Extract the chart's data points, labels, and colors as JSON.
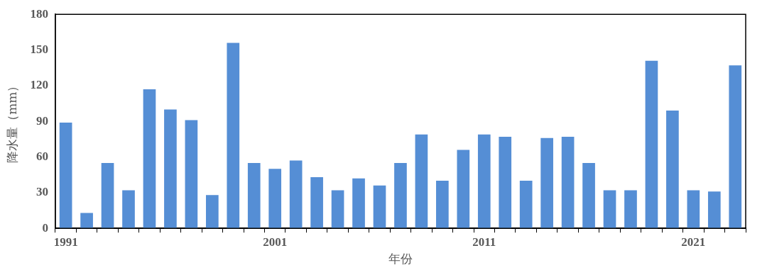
{
  "chart_data": {
    "type": "bar",
    "xlabel": "年份",
    "ylabel": "降水量（mm）",
    "categories": [
      "1991",
      null,
      null,
      null,
      null,
      null,
      null,
      null,
      null,
      null,
      "2001",
      null,
      null,
      null,
      null,
      null,
      null,
      null,
      null,
      null,
      "2011",
      null,
      null,
      null,
      null,
      null,
      null,
      null,
      null,
      null,
      "2021",
      null,
      null
    ],
    "values": [
      89,
      13,
      55,
      32,
      117,
      100,
      91,
      28,
      156,
      55,
      50,
      57,
      43,
      32,
      42,
      36,
      55,
      79,
      40,
      66,
      79,
      77,
      40,
      76,
      77,
      55,
      32,
      32,
      141,
      99,
      32,
      31,
      137
    ],
    "color": "#558ed5",
    "ylim": [
      0,
      180
    ],
    "yticks": [
      0,
      30,
      60,
      90,
      120,
      150,
      180
    ],
    "grid": false
  }
}
